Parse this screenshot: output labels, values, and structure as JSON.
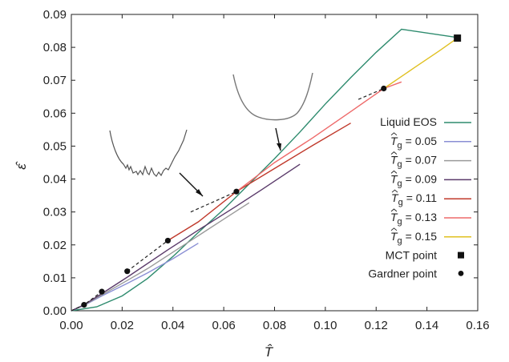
{
  "chart_data": {
    "type": "line",
    "xlabel": "T̂",
    "ylabel": "ε̂",
    "xlim": [
      0,
      0.16
    ],
    "ylim": [
      0,
      0.09
    ],
    "xticks": [
      "0.00",
      "0.02",
      "0.04",
      "0.06",
      "0.08",
      "0.10",
      "0.12",
      "0.14",
      "0.16"
    ],
    "yticks": [
      "0.00",
      "0.01",
      "0.02",
      "0.03",
      "0.04",
      "0.05",
      "0.06",
      "0.07",
      "0.08",
      "0.09"
    ],
    "legend_position": "right",
    "series": [
      {
        "name": "Liquid EOS",
        "color": "#2e8b6e",
        "points": [
          [
            0,
            0
          ],
          [
            0.01,
            0.0012
          ],
          [
            0.02,
            0.0045
          ],
          [
            0.03,
            0.0098
          ],
          [
            0.04,
            0.0165
          ],
          [
            0.05,
            0.0238
          ],
          [
            0.06,
            0.0308
          ],
          [
            0.07,
            0.0385
          ],
          [
            0.08,
            0.0462
          ],
          [
            0.09,
            0.0543
          ],
          [
            0.1,
            0.0628
          ],
          [
            0.11,
            0.0708
          ],
          [
            0.12,
            0.0785
          ],
          [
            0.13,
            0.0855
          ],
          [
            0.14,
            0.092
          ],
          [
            0.152,
            0.083
          ]
        ]
      },
      {
        "name": "T̂g = 0.05",
        "label_main": "T",
        "label_sub": "g",
        "label_value": "= 0.05",
        "color": "#8a8fd4",
        "points": [
          [
            0.0,
            0.0
          ],
          [
            0.005,
            0.0016
          ],
          [
            0.012,
            0.0045
          ],
          [
            0.022,
            0.0083
          ],
          [
            0.03,
            0.0115
          ],
          [
            0.04,
            0.0158
          ],
          [
            0.05,
            0.0205
          ]
        ]
      },
      {
        "name": "T̂g = 0.07",
        "label_main": "T",
        "label_sub": "g",
        "label_value": "= 0.07",
        "color": "#9a9a9a",
        "points": [
          [
            0.0,
            0.0
          ],
          [
            0.005,
            0.0017
          ],
          [
            0.012,
            0.0048
          ],
          [
            0.022,
            0.0092
          ],
          [
            0.03,
            0.0128
          ],
          [
            0.04,
            0.0178
          ],
          [
            0.05,
            0.0228
          ],
          [
            0.06,
            0.0278
          ],
          [
            0.07,
            0.0328
          ]
        ]
      },
      {
        "name": "T̂g = 0.09",
        "label_main": "T",
        "label_sub": "g",
        "label_value": "= 0.09",
        "color": "#5a3a6a",
        "points": [
          [
            0.0,
            0.0
          ],
          [
            0.005,
            0.0018
          ],
          [
            0.012,
            0.0052
          ],
          [
            0.022,
            0.0102
          ],
          [
            0.038,
            0.0185
          ],
          [
            0.05,
            0.0245
          ],
          [
            0.065,
            0.0318
          ],
          [
            0.075,
            0.0368
          ],
          [
            0.09,
            0.0445
          ]
        ]
      },
      {
        "name": "T̂g = 0.11",
        "label_main": "T",
        "label_sub": "g",
        "label_value": "= 0.11",
        "color": "#c0392b",
        "points": [
          [
            0.038,
            0.0213
          ],
          [
            0.05,
            0.027
          ],
          [
            0.065,
            0.0362
          ],
          [
            0.08,
            0.0432
          ],
          [
            0.095,
            0.0502
          ],
          [
            0.11,
            0.057
          ]
        ]
      },
      {
        "name": "T̂g = 0.13",
        "label_main": "T",
        "label_sub": "g",
        "label_value": "= 0.13",
        "color": "#ee6a6a",
        "points": [
          [
            0.065,
            0.0362
          ],
          [
            0.08,
            0.045
          ],
          [
            0.095,
            0.0525
          ],
          [
            0.11,
            0.0605
          ],
          [
            0.123,
            0.0675
          ],
          [
            0.13,
            0.0695
          ]
        ]
      },
      {
        "name": "T̂g = 0.15",
        "label_main": "T",
        "label_sub": "g",
        "label_value": "= 0.15",
        "color": "#e0c020",
        "points": [
          [
            0.123,
            0.0675
          ],
          [
            0.135,
            0.0738
          ],
          [
            0.145,
            0.079
          ],
          [
            0.152,
            0.0828
          ]
        ]
      }
    ],
    "dashed_extensions": [
      [
        [
          0.0,
          0.0
        ],
        [
          0.005,
          0.0018
        ],
        [
          0.012,
          0.0058
        ]
      ],
      [
        [
          0.022,
          0.012
        ],
        [
          0.038,
          0.0213
        ]
      ],
      [
        [
          0.047,
          0.03
        ],
        [
          0.065,
          0.0362
        ]
      ],
      [
        [
          0.113,
          0.0642
        ],
        [
          0.123,
          0.0675
        ]
      ]
    ],
    "mct_point": {
      "label": "MCT point",
      "x": 0.152,
      "y": 0.0828
    },
    "gardner_points": {
      "label": "Gardner point",
      "points": [
        [
          0.005,
          0.0018
        ],
        [
          0.012,
          0.0058
        ],
        [
          0.022,
          0.012
        ],
        [
          0.038,
          0.0213
        ],
        [
          0.065,
          0.0362
        ],
        [
          0.123,
          0.0675
        ]
      ]
    }
  }
}
